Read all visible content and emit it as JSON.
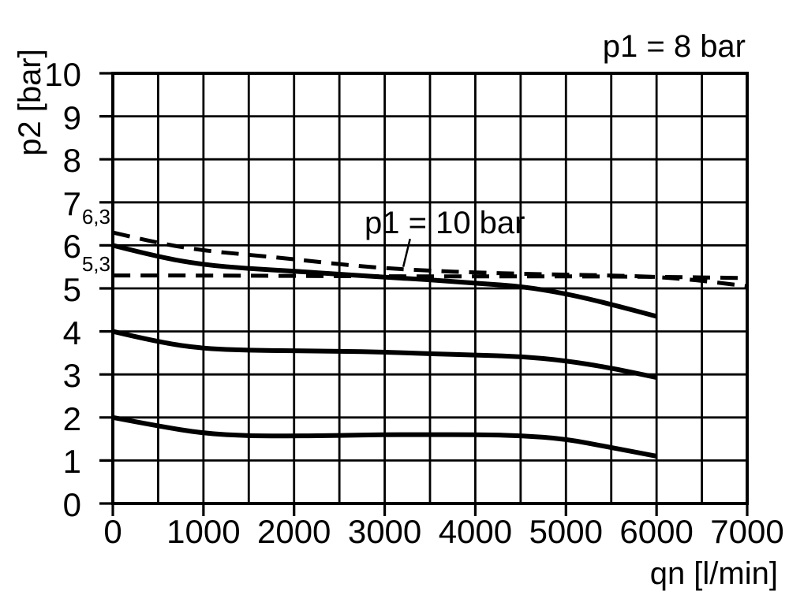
{
  "chart_data": {
    "type": "line",
    "xlabel": "qn [l/min]",
    "ylabel": "p2 [bar]",
    "xlim": [
      0,
      7000
    ],
    "ylim": [
      0,
      10
    ],
    "x_ticks": [
      0,
      1000,
      2000,
      3000,
      4000,
      5000,
      6000,
      7000
    ],
    "x_tick_labels": [
      "0",
      "1000",
      "2000",
      "3000",
      "4000",
      "5000",
      "6000",
      "7000"
    ],
    "y_ticks": [
      0,
      1,
      2,
      3,
      4,
      5,
      6,
      7,
      8,
      9,
      10
    ],
    "y_tick_labels": [
      "0",
      "1",
      "2",
      "3",
      "4",
      "5",
      "6",
      "7",
      "8",
      "9",
      "10"
    ],
    "x_grid_step": 500,
    "y_grid_step": 1,
    "grid": true,
    "axis_color": "#000000",
    "curve_color": "#000000",
    "background": "#ffffff",
    "reference_labels": [
      {
        "text": "6,3",
        "value": 6.3
      },
      {
        "text": "5,3",
        "value": 5.3
      }
    ],
    "annotations": {
      "top_right": "p1 = 8 bar",
      "curve_label": {
        "text": "p1 = 10 bar",
        "leader_from": [
          3280,
          6.15
        ],
        "leader_to": [
          3205,
          5.5
        ]
      }
    },
    "series": [
      {
        "name": "dashed curve from 6,3 (p1 = 10 bar)",
        "style": "dashed",
        "points": [
          [
            0,
            6.3
          ],
          [
            500,
            6.05
          ],
          [
            1000,
            5.88
          ],
          [
            1500,
            5.78
          ],
          [
            2000,
            5.68
          ],
          [
            2500,
            5.56
          ],
          [
            3000,
            5.47
          ],
          [
            3500,
            5.41
          ],
          [
            4000,
            5.37
          ],
          [
            4500,
            5.34
          ],
          [
            5000,
            5.32
          ],
          [
            5500,
            5.3
          ],
          [
            6000,
            5.27
          ],
          [
            6500,
            5.18
          ],
          [
            7000,
            5.05
          ]
        ]
      },
      {
        "name": "dashed line at 5,3 (p1 = 10 bar)",
        "style": "dashed",
        "points": [
          [
            0,
            5.3
          ],
          [
            1000,
            5.3
          ],
          [
            2000,
            5.29
          ],
          [
            3000,
            5.28
          ],
          [
            4000,
            5.28
          ],
          [
            5000,
            5.28
          ],
          [
            6000,
            5.27
          ],
          [
            7000,
            5.24
          ]
        ]
      },
      {
        "name": "solid curve from 6 bar (p1 = 8 bar)",
        "style": "solid",
        "points": [
          [
            0,
            6.0
          ],
          [
            500,
            5.73
          ],
          [
            1000,
            5.55
          ],
          [
            1500,
            5.46
          ],
          [
            2000,
            5.4
          ],
          [
            2500,
            5.33
          ],
          [
            3000,
            5.26
          ],
          [
            3500,
            5.2
          ],
          [
            4000,
            5.12
          ],
          [
            4500,
            5.05
          ],
          [
            5000,
            4.88
          ],
          [
            5500,
            4.63
          ],
          [
            6000,
            4.35
          ]
        ]
      },
      {
        "name": "solid curve from 4 bar (p1 = 8 bar)",
        "style": "solid",
        "points": [
          [
            0,
            4.0
          ],
          [
            500,
            3.75
          ],
          [
            1000,
            3.6
          ],
          [
            1500,
            3.56
          ],
          [
            2000,
            3.55
          ],
          [
            2500,
            3.54
          ],
          [
            3000,
            3.52
          ],
          [
            3500,
            3.48
          ],
          [
            4000,
            3.45
          ],
          [
            4500,
            3.42
          ],
          [
            5000,
            3.32
          ],
          [
            5500,
            3.15
          ],
          [
            6000,
            2.93
          ]
        ]
      },
      {
        "name": "solid curve from 2 bar (p1 = 8 bar)",
        "style": "solid",
        "points": [
          [
            0,
            2.0
          ],
          [
            500,
            1.8
          ],
          [
            1000,
            1.63
          ],
          [
            1500,
            1.57
          ],
          [
            2000,
            1.57
          ],
          [
            2500,
            1.58
          ],
          [
            3000,
            1.6
          ],
          [
            3500,
            1.6
          ],
          [
            4000,
            1.6
          ],
          [
            4500,
            1.58
          ],
          [
            5000,
            1.5
          ],
          [
            5500,
            1.3
          ],
          [
            6000,
            1.1
          ]
        ]
      }
    ]
  }
}
